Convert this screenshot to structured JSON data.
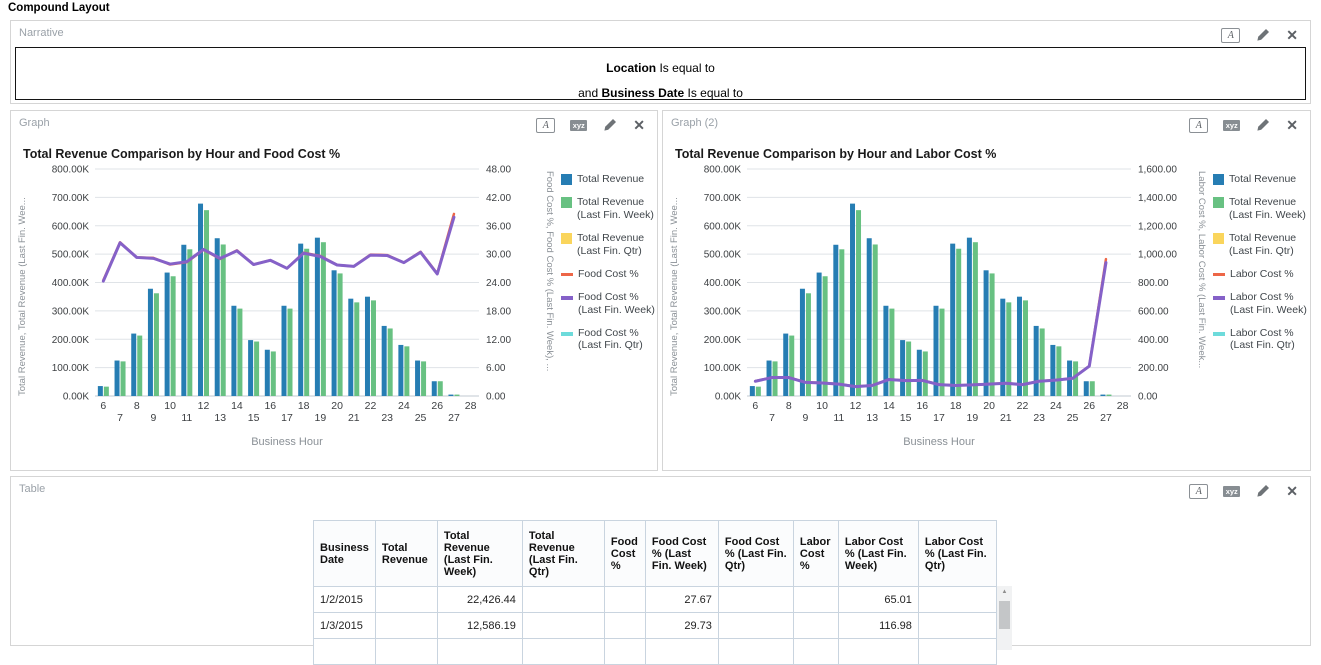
{
  "page": {
    "title": "Compound Layout"
  },
  "icons": {
    "format": "A",
    "xyz": "xyz",
    "close": "✕"
  },
  "panels": {
    "narrative": {
      "label": "Narrative",
      "line1_bold": "Location",
      "line1_rest": " Is equal to",
      "line2_pre": "and ",
      "line2_bold": "Business Date",
      "line2_rest": " Is equal to"
    },
    "graph1": {
      "label": "Graph"
    },
    "graph2": {
      "label": "Graph (2)"
    },
    "table": {
      "label": "Table"
    }
  },
  "chart_data": [
    {
      "type": "bar",
      "title": "Total Revenue Comparison by Hour and Food Cost %",
      "xlabel": "Business Hour",
      "x": [
        6,
        7,
        8,
        9,
        10,
        11,
        12,
        13,
        14,
        15,
        16,
        17,
        18,
        19,
        20,
        21,
        22,
        23,
        24,
        25,
        26,
        27,
        28
      ],
      "left_axis": {
        "label": "Total Revenue, Total Revenue (Last Fin. Wee...",
        "min": 0,
        "max": 800000,
        "step": 100000
      },
      "right_axis": {
        "label": "Food Cost %, Food Cost % (Last Fin. Week), ...",
        "min": 0,
        "max": 48,
        "step": 6
      },
      "grid": true,
      "legend_position": "right",
      "series": [
        {
          "name": "Total Revenue",
          "type": "bar",
          "axis": "left",
          "color": "#267DB3",
          "values": [
            35000,
            125000,
            220000,
            378000,
            435000,
            533000,
            678000,
            556000,
            318000,
            197000,
            163000,
            318000,
            537000,
            558000,
            443000,
            343000,
            350000,
            247000,
            180000,
            125000,
            52000,
            5000,
            0
          ]
        },
        {
          "name": "Total Revenue (Last Fin. Week)",
          "type": "bar",
          "axis": "left",
          "color": "#68C182",
          "values": [
            33000,
            122000,
            213000,
            362000,
            422000,
            517000,
            655000,
            534000,
            308000,
            192000,
            157000,
            308000,
            519000,
            542000,
            432000,
            330000,
            337000,
            238000,
            175000,
            122000,
            52000,
            5000,
            0
          ]
        },
        {
          "name": "Total Revenue (Last Fin. Qtr)",
          "type": "bar",
          "axis": "left",
          "color": "#FAD55C",
          "values": []
        },
        {
          "name": "Food Cost %",
          "type": "line",
          "axis": "right",
          "color": "#ED6647",
          "width": 2.5,
          "values": [
            24.5,
            32.5,
            29.3,
            29.2,
            27.8,
            28.3,
            30.9,
            29.0,
            30.8,
            27.8,
            28.7,
            27.0,
            30.3,
            29.6,
            27.7,
            27.4,
            29.9,
            29.8,
            28.2,
            30.5,
            25.9,
            38.5,
            null
          ]
        },
        {
          "name": "Food Cost % (Last Fin. Week)",
          "type": "line",
          "axis": "right",
          "color": "#8561C8",
          "width": 3,
          "values": [
            24.3,
            32.4,
            29.3,
            29.1,
            27.9,
            28.4,
            31.0,
            29.1,
            30.7,
            27.8,
            28.7,
            27.0,
            30.2,
            29.5,
            27.7,
            27.4,
            29.8,
            29.7,
            28.2,
            30.4,
            25.8,
            37.8,
            null
          ]
        },
        {
          "name": "Food Cost % (Last Fin. Qtr)",
          "type": "line",
          "axis": "right",
          "color": "#6DDBDB",
          "width": 3,
          "values": []
        }
      ]
    },
    {
      "type": "bar",
      "title": "Total Revenue Comparison by Hour and Labor Cost %",
      "xlabel": "Business Hour",
      "x": [
        6,
        7,
        8,
        9,
        10,
        11,
        12,
        13,
        14,
        15,
        16,
        17,
        18,
        19,
        20,
        21,
        22,
        23,
        24,
        25,
        26,
        27,
        28
      ],
      "left_axis": {
        "label": "Total Revenue, Total Revenue (Last Fin. Wee...",
        "min": 0,
        "max": 800000,
        "step": 100000
      },
      "right_axis": {
        "label": "Labor Cost %, Labor Cost % (Last Fin. Week...",
        "min": 0,
        "max": 1600,
        "step": 200
      },
      "grid": true,
      "legend_position": "right",
      "series": [
        {
          "name": "Total Revenue",
          "type": "bar",
          "axis": "left",
          "color": "#267DB3",
          "values": [
            35000,
            125000,
            220000,
            378000,
            435000,
            533000,
            678000,
            556000,
            318000,
            197000,
            163000,
            318000,
            537000,
            558000,
            443000,
            343000,
            350000,
            247000,
            180000,
            125000,
            52000,
            5000,
            0
          ]
        },
        {
          "name": "Total Revenue (Last Fin. Week)",
          "type": "bar",
          "axis": "left",
          "color": "#68C182",
          "values": [
            33000,
            122000,
            213000,
            362000,
            422000,
            517000,
            655000,
            534000,
            308000,
            192000,
            157000,
            308000,
            519000,
            542000,
            432000,
            330000,
            337000,
            238000,
            175000,
            122000,
            52000,
            5000,
            0
          ]
        },
        {
          "name": "Total Revenue (Last Fin. Qtr)",
          "type": "bar",
          "axis": "left",
          "color": "#FAD55C",
          "values": []
        },
        {
          "name": "Labor Cost %",
          "type": "line",
          "axis": "right",
          "color": "#ED6647",
          "width": 2.5,
          "values": [
            105,
            131,
            131,
            97,
            93,
            85,
            67,
            75,
            117,
            109,
            111,
            81,
            75,
            79,
            85,
            91,
            81,
            105,
            113,
            125,
            211,
            965,
            null
          ]
        },
        {
          "name": "Labor Cost % (Last Fin. Week)",
          "type": "line",
          "axis": "right",
          "color": "#8561C8",
          "width": 3,
          "values": [
            104,
            130,
            130,
            96,
            92,
            84,
            66,
            74,
            116,
            108,
            110,
            80,
            74,
            78,
            84,
            90,
            80,
            104,
            112,
            124,
            210,
            940,
            null
          ]
        },
        {
          "name": "Labor Cost % (Last Fin. Qtr)",
          "type": "line",
          "axis": "right",
          "color": "#6DDBDB",
          "width": 3,
          "values": []
        }
      ]
    }
  ],
  "table": {
    "columns": [
      "Business Date",
      "Total Revenue",
      "Total Revenue (Last Fin. Week)",
      "Total Revenue (Last Fin. Qtr)",
      "Food Cost %",
      "Food Cost % (Last Fin. Week)",
      "Food Cost % (Last Fin. Qtr)",
      "Labor Cost %",
      "Labor Cost % (Last Fin. Week)",
      "Labor Cost % (Last Fin. Qtr)"
    ],
    "rows": [
      [
        "1/2/2015",
        "",
        "22,426.44",
        "",
        "",
        "27.67",
        "",
        "",
        "65.01",
        ""
      ],
      [
        "1/3/2015",
        "",
        "12,586.19",
        "",
        "",
        "29.73",
        "",
        "",
        "116.98",
        ""
      ],
      [
        "",
        "",
        "",
        "",
        "",
        "",
        "",
        "",
        "",
        ""
      ]
    ]
  }
}
